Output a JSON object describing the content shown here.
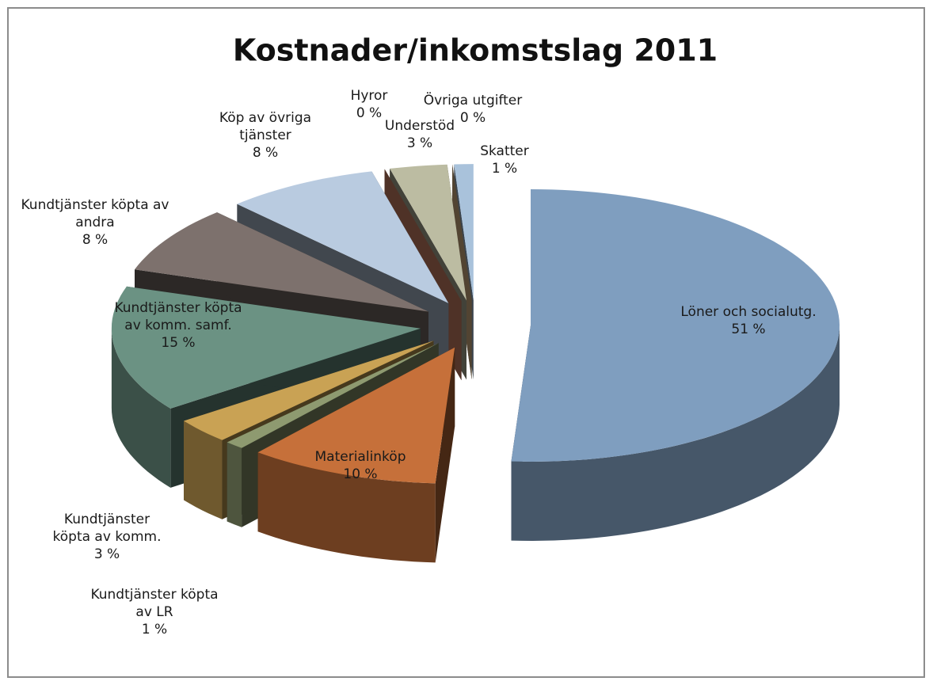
{
  "chart_data": {
    "type": "pie3d",
    "title": "Kostnader/inkomstslag 2011",
    "categories": [
      "Löner och socialutg.",
      "Materialinköp",
      "Kundtjänster köpta av LR",
      "Kundtjänster köpta av komm.",
      "Kundtjänster köpta av komm. samf.",
      "Kundtjänster köpta av andra",
      "Köp av övriga tjänster",
      "Hyror",
      "Understöd",
      "Övriga utgifter",
      "Skatter"
    ],
    "values": [
      51,
      10,
      1,
      3,
      15,
      8,
      8,
      0,
      3,
      0,
      1
    ],
    "value_labels": [
      "51 %",
      "10 %",
      "1 %",
      "3 %",
      "15 %",
      "8 %",
      "8 %",
      "0 %",
      "3 %",
      "0 %",
      "1 %"
    ],
    "colors": [
      "#7f9ebf",
      "#c6703a",
      "#8e9a70",
      "#c9a254",
      "#6b9283",
      "#7d716d",
      "#b9cbe0",
      "#e2906f",
      "#bcbca2",
      "#e9c28f",
      "#a9c2db"
    ]
  }
}
